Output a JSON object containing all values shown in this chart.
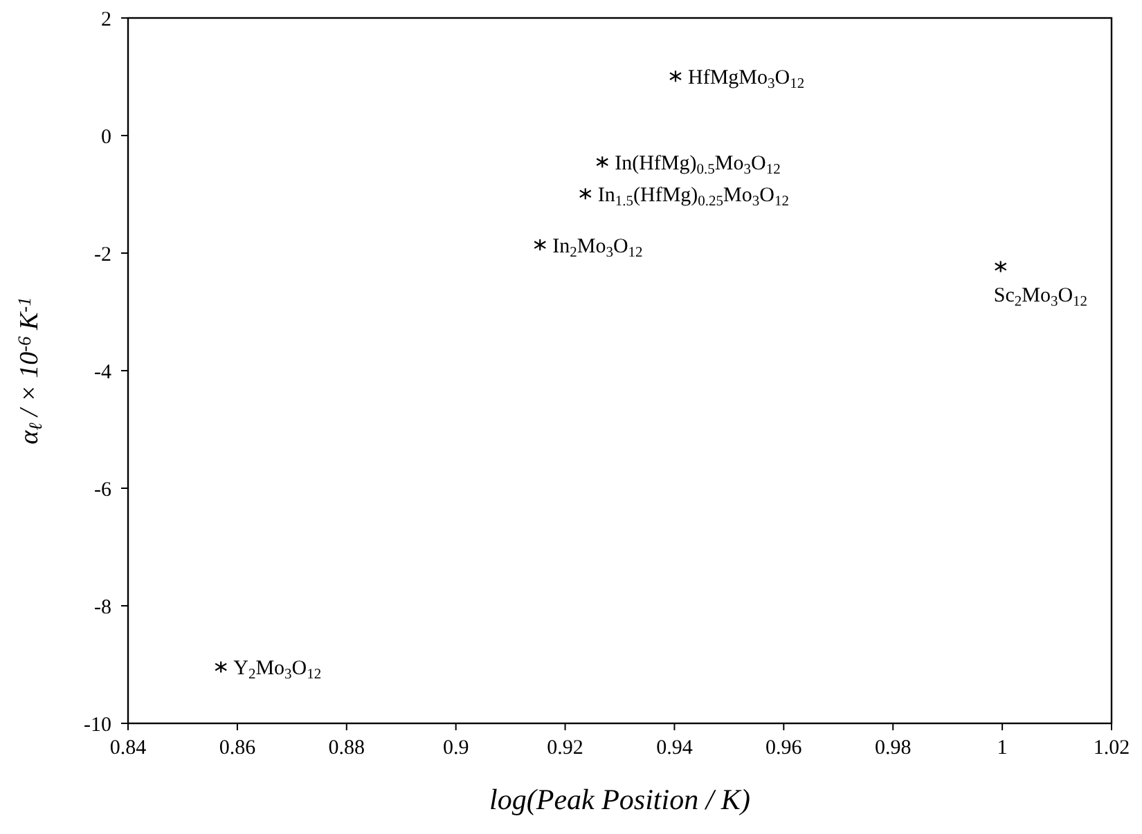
{
  "chart_data": {
    "type": "scatter",
    "xlabel": "log(Peak Position / K)",
    "ylabel": "α$_{ℓ}$ / × 10$^{-6}$ K$^{-1}$",
    "x": [
      0.9402,
      0.9268,
      0.9237,
      0.9154,
      0.9997,
      0.857
    ],
    "series": [
      {
        "color": "#000000",
        "values": [
          1.01,
          -0.45,
          -0.99,
          -1.86,
          -2.23,
          -9.04
        ]
      }
    ],
    "xlim": [
      0.84,
      1.02
    ],
    "xticks": [
      0.84,
      0.86,
      0.88,
      {
        "value": 0.9,
        "label": "0.9"
      },
      0.92,
      0.94,
      0.96,
      0.98,
      {
        "value": 1,
        "label": "1"
      },
      1.02
    ],
    "ylim": [
      -10,
      2
    ],
    "yticks": [
      -10,
      -8,
      -6,
      -4,
      -2,
      0,
      2
    ],
    "grid": false,
    "marker": "cross",
    "annotations": [
      {
        "text": "HfMgMo$_{3}$O$_{12}$",
        "x": 0.9402,
        "y": 1.01
      },
      {
        "text": "In(HfMg)$_{0.5}$Mo$_{3}$O$_{12}$",
        "x": 0.9268,
        "y": -0.45
      },
      {
        "text": "In$_{1.5}$(HfMg)$_{0.25}$Mo$_{3}$O$_{12}$",
        "x": 0.9237,
        "y": -0.99
      },
      {
        "text": "In$_{2}$Mo$_{3}$O$_{12}$",
        "x": 0.9154,
        "y": -1.86
      },
      {
        "text": "Sc$_{2}$Mo$_{3}$O$_{12}$",
        "x": 0.9997,
        "y": -2.23
      },
      {
        "text": "Y$_{2}$Mo$_{3}$O$_{12}$",
        "x": 0.857,
        "y": -9.04
      }
    ]
  }
}
